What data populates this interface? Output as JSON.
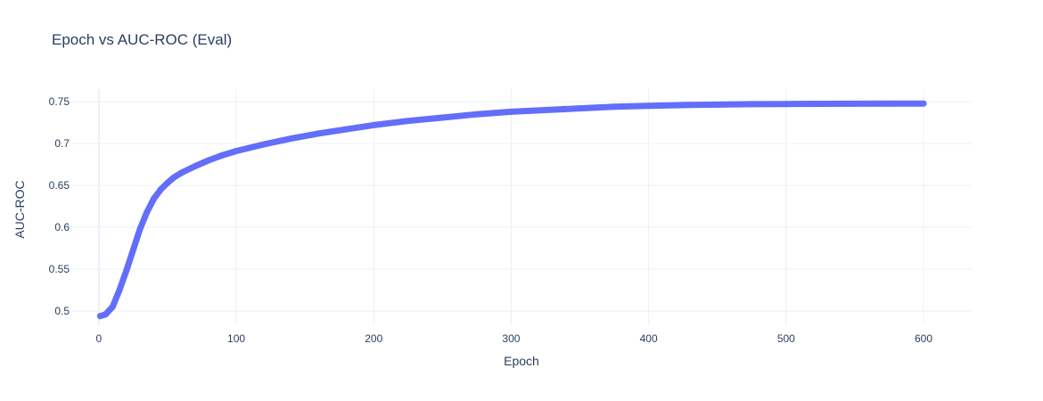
{
  "chart_data": {
    "type": "scatter",
    "mode": "lines+markers",
    "title": "Epoch vs AUC-ROC (Eval)",
    "xlabel": "Epoch",
    "ylabel": "AUC-ROC",
    "xlim": [
      -20,
      635
    ],
    "ylim": [
      0.483,
      0.765
    ],
    "x_ticks": [
      0,
      100,
      200,
      300,
      400,
      500,
      600
    ],
    "x_tick_labels": [
      "0",
      "100",
      "200",
      "300",
      "400",
      "500",
      "600"
    ],
    "y_ticks": [
      0.5,
      0.55,
      0.6,
      0.65,
      0.7,
      0.75
    ],
    "y_tick_labels": [
      "0.5",
      "0.55",
      "0.6",
      "0.65",
      "0.7",
      "0.75"
    ],
    "grid": true,
    "series": [
      {
        "color": "#636efa",
        "x": [
          1,
          5,
          10,
          15,
          20,
          25,
          30,
          35,
          40,
          45,
          50,
          55,
          60,
          70,
          80,
          90,
          100,
          120,
          140,
          160,
          180,
          200,
          225,
          250,
          275,
          300,
          325,
          350,
          375,
          400,
          425,
          450,
          475,
          500,
          525,
          550,
          575,
          600
        ],
        "y": [
          0.494,
          0.496,
          0.505,
          0.525,
          0.548,
          0.573,
          0.598,
          0.618,
          0.634,
          0.645,
          0.653,
          0.66,
          0.665,
          0.673,
          0.68,
          0.686,
          0.691,
          0.699,
          0.706,
          0.712,
          0.717,
          0.722,
          0.727,
          0.731,
          0.735,
          0.738,
          0.74,
          0.742,
          0.744,
          0.745,
          0.746,
          0.7465,
          0.747,
          0.7472,
          0.7474,
          0.7476,
          0.7477,
          0.7478
        ]
      }
    ]
  }
}
